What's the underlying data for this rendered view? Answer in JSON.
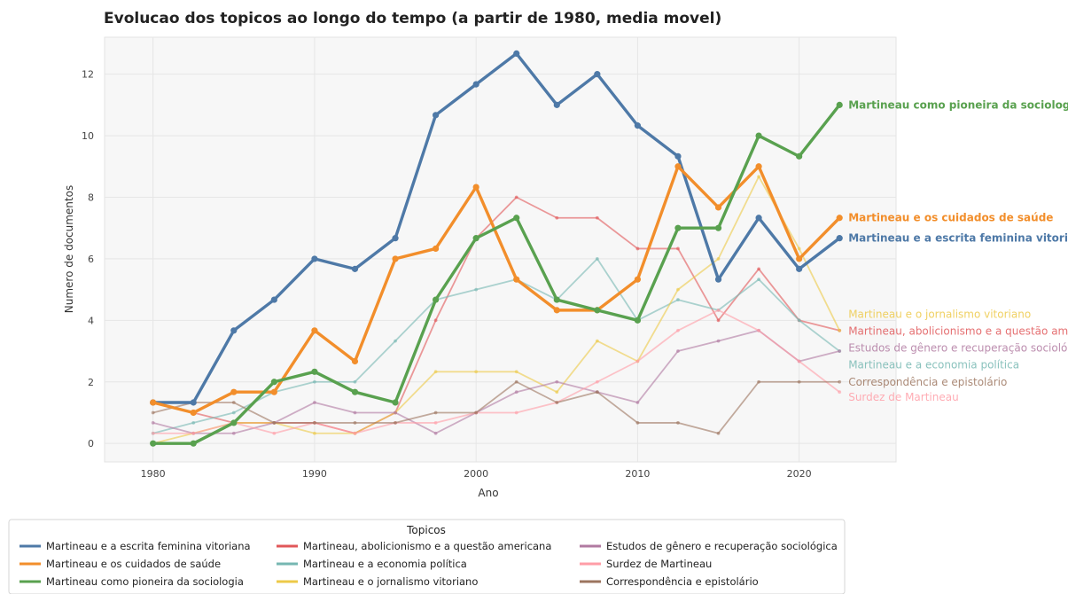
{
  "chart_data": {
    "type": "line",
    "title": "Evolucao dos topicos ao longo do tempo (a partir de 1980, media movel)",
    "xlabel": "Ano",
    "ylabel": "Numero de documentos",
    "x": [
      1980,
      1982.5,
      1985,
      1987.5,
      1990,
      1992.5,
      1995,
      1997.5,
      2000,
      2002.5,
      2005,
      2007.5,
      2010,
      2012.5,
      2015,
      2017.5,
      2020,
      2022.5
    ],
    "xlim": [
      1977,
      2026
    ],
    "ylim": [
      -0.6,
      13.2
    ],
    "xticks": [
      "1980",
      "1990",
      "2000",
      "2010",
      "2020"
    ],
    "xtick_values": [
      1980,
      1990,
      2000,
      2010,
      2020
    ],
    "yticks": [
      "0",
      "2",
      "4",
      "6",
      "8",
      "10",
      "12"
    ],
    "ytick_values": [
      0,
      2,
      4,
      6,
      8,
      10,
      12
    ],
    "grid": true,
    "legend_title": "Topicos",
    "legend_position": "bottom",
    "series": [
      {
        "name": "Martineau e a escrita feminina vitoriana",
        "color": "#4e79a7",
        "highlight": true,
        "values": [
          1.33,
          1.33,
          3.67,
          4.67,
          6.0,
          5.67,
          6.67,
          10.67,
          11.67,
          12.67,
          11.0,
          12.0,
          10.33,
          9.33,
          5.33,
          7.33,
          5.67,
          6.67
        ]
      },
      {
        "name": "Martineau e os cuidados de saúde",
        "color": "#f28e2b",
        "highlight": true,
        "values": [
          1.33,
          1.0,
          1.67,
          1.67,
          3.67,
          2.67,
          6.0,
          6.33,
          8.33,
          5.33,
          4.33,
          4.33,
          5.33,
          9.0,
          7.67,
          9.0,
          6.0,
          7.33
        ]
      },
      {
        "name": "Martineau como pioneira da sociologia",
        "color": "#59a14f",
        "highlight": true,
        "values": [
          0.0,
          0.0,
          0.67,
          2.0,
          2.33,
          1.67,
          1.33,
          4.67,
          6.67,
          7.33,
          4.67,
          4.33,
          4.0,
          7.0,
          7.0,
          10.0,
          9.33,
          11.0
        ]
      },
      {
        "name": "Martineau, abolicionismo e a questão americana",
        "color": "#e15759",
        "highlight": false,
        "values": [
          1.33,
          1.0,
          0.67,
          0.67,
          0.67,
          0.33,
          1.0,
          4.0,
          6.67,
          8.0,
          7.33,
          7.33,
          6.33,
          6.33,
          4.0,
          5.67,
          4.0,
          3.67
        ]
      },
      {
        "name": "Martineau e a economia política",
        "color": "#76b7b2",
        "highlight": false,
        "values": [
          0.33,
          0.67,
          1.0,
          1.67,
          2.0,
          2.0,
          3.33,
          4.67,
          5.0,
          5.33,
          4.67,
          6.0,
          4.0,
          4.67,
          4.33,
          5.33,
          4.0,
          3.0
        ]
      },
      {
        "name": "Martineau e o jornalismo vitoriano",
        "color": "#edc948",
        "highlight": false,
        "values": [
          0.0,
          0.33,
          0.67,
          0.67,
          0.33,
          0.33,
          1.0,
          2.33,
          2.33,
          2.33,
          1.67,
          3.33,
          2.67,
          5.0,
          6.0,
          8.67,
          6.33,
          3.67
        ]
      },
      {
        "name": "Estudos de gênero e recuperação sociológica",
        "color": "#b07aa1",
        "highlight": false,
        "values": [
          0.67,
          0.33,
          0.33,
          0.67,
          1.33,
          1.0,
          1.0,
          0.33,
          1.0,
          1.67,
          2.0,
          1.67,
          1.33,
          3.0,
          3.33,
          3.67,
          2.67,
          3.0
        ]
      },
      {
        "name": "Surdez de Martineau",
        "color": "#ff9da7",
        "highlight": false,
        "values": [
          0.33,
          0.33,
          0.67,
          0.33,
          0.67,
          0.33,
          0.67,
          0.67,
          1.0,
          1.0,
          1.33,
          2.0,
          2.67,
          3.67,
          4.33,
          3.67,
          2.67,
          1.67
        ]
      },
      {
        "name": "Correspondência e epistolário",
        "color": "#9c755f",
        "highlight": false,
        "values": [
          1.0,
          1.33,
          1.33,
          0.67,
          0.67,
          0.67,
          0.67,
          1.0,
          1.0,
          2.0,
          1.33,
          1.67,
          0.67,
          0.67,
          0.33,
          2.0,
          2.0,
          2.0
        ]
      }
    ],
    "end_labels": [
      {
        "text": "Martineau como pioneira da sociologia",
        "series": 2,
        "y": 11.0
      },
      {
        "text": "Martineau e os cuidados de saúde",
        "series": 1,
        "y": 7.33
      },
      {
        "text": "Martineau e a escrita feminina vitoriana",
        "series": 0,
        "y": 6.67
      },
      {
        "text": "Martineau e o jornalismo vitoriano",
        "series": 5,
        "y": 4.2
      },
      {
        "text": "Martineau, abolicionismo e a questão americana",
        "series": 3,
        "y": 3.65
      },
      {
        "text": "Estudos de gênero e recuperação sociológica",
        "series": 6,
        "y": 3.1
      },
      {
        "text": "Martineau e a economia política",
        "series": 4,
        "y": 2.55
      },
      {
        "text": "Correspondência e epistolário",
        "series": 8,
        "y": 2.0
      },
      {
        "text": "Surdez de Martineau",
        "series": 7,
        "y": 1.5
      }
    ]
  }
}
